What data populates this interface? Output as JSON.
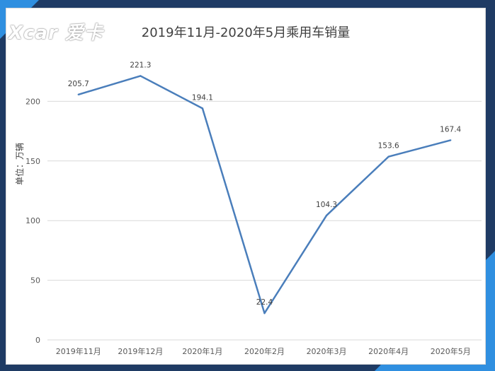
{
  "watermark": "Xcar 爱卡",
  "chart_data": {
    "type": "line",
    "title": "2019年11月-2020年5月乘用车销量",
    "ylabel": "单位：万辆",
    "xlabel": "",
    "categories": [
      "2019年11月",
      "2019年12月",
      "2020年1月",
      "2020年2月",
      "2020年3月",
      "2020年4月",
      "2020年5月"
    ],
    "series": [
      {
        "values": [
          205.7,
          221.3,
          194.1,
          22.4,
          104.3,
          153.6,
          167.4
        ],
        "color": "#4a7ebb"
      }
    ],
    "data_labels": [
      "205.7",
      "221.3",
      "194.1",
      "22.4",
      "104.3",
      "153.6",
      "167.4"
    ],
    "ylim": [
      0,
      250
    ],
    "yticks": [
      0,
      50,
      100,
      150,
      200
    ],
    "grid": true,
    "legend": "none"
  },
  "colors": {
    "background": "#1f3b64",
    "accent": "#2f8fe0",
    "grid": "#d9d9d9",
    "line": "#4a7ebb"
  }
}
